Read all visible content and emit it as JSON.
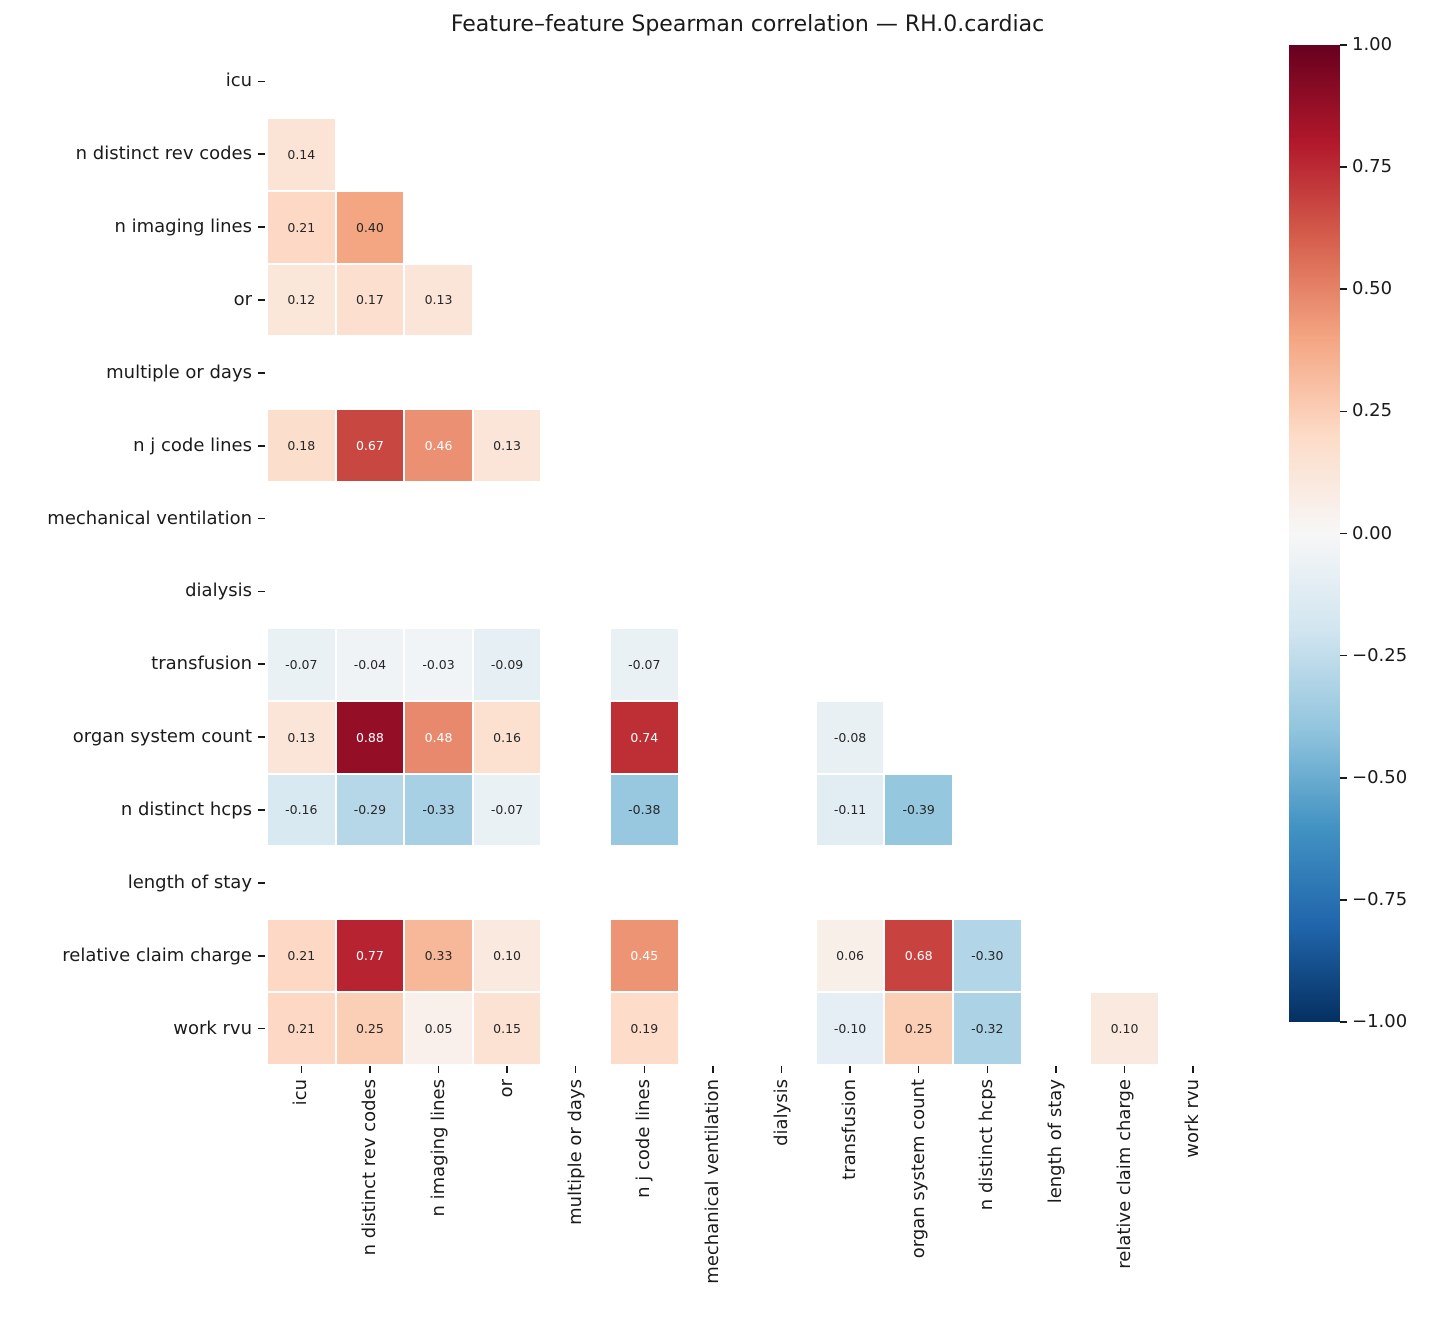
{
  "chart_data": {
    "type": "heatmap",
    "title": "Feature–feature Spearman correlation — RH.0.cardiac",
    "labels": [
      "icu",
      "n distinct rev codes",
      "n imaging lines",
      "or",
      "multiple or days",
      "n j code lines",
      "mechanical ventilation",
      "dialysis",
      "transfusion",
      "organ system count",
      "n distinct hcps",
      "length of stay",
      "relative claim charge",
      "work rvu"
    ],
    "matrix": [
      [
        null,
        null,
        null,
        null,
        null,
        null,
        null,
        null,
        null,
        null,
        null,
        null,
        null,
        null
      ],
      [
        0.14,
        null,
        null,
        null,
        null,
        null,
        null,
        null,
        null,
        null,
        null,
        null,
        null,
        null
      ],
      [
        0.21,
        0.4,
        null,
        null,
        null,
        null,
        null,
        null,
        null,
        null,
        null,
        null,
        null,
        null
      ],
      [
        0.12,
        0.17,
        0.13,
        null,
        null,
        null,
        null,
        null,
        null,
        null,
        null,
        null,
        null,
        null
      ],
      [
        null,
        null,
        null,
        null,
        null,
        null,
        null,
        null,
        null,
        null,
        null,
        null,
        null,
        null
      ],
      [
        0.18,
        0.67,
        0.46,
        0.13,
        null,
        null,
        null,
        null,
        null,
        null,
        null,
        null,
        null,
        null
      ],
      [
        null,
        null,
        null,
        null,
        null,
        null,
        null,
        null,
        null,
        null,
        null,
        null,
        null,
        null
      ],
      [
        null,
        null,
        null,
        null,
        null,
        null,
        null,
        null,
        null,
        null,
        null,
        null,
        null,
        null
      ],
      [
        -0.07,
        -0.04,
        -0.03,
        -0.09,
        null,
        -0.07,
        null,
        null,
        null,
        null,
        null,
        null,
        null,
        null
      ],
      [
        0.13,
        0.88,
        0.48,
        0.16,
        null,
        0.74,
        null,
        null,
        -0.08,
        null,
        null,
        null,
        null,
        null
      ],
      [
        -0.16,
        -0.29,
        -0.33,
        -0.07,
        null,
        -0.38,
        null,
        null,
        -0.11,
        -0.39,
        null,
        null,
        null,
        null
      ],
      [
        null,
        null,
        null,
        null,
        null,
        null,
        null,
        null,
        null,
        null,
        null,
        null,
        null,
        null
      ],
      [
        0.21,
        0.77,
        0.33,
        0.1,
        null,
        0.45,
        null,
        null,
        0.06,
        0.68,
        -0.3,
        null,
        null,
        null
      ],
      [
        0.21,
        0.25,
        0.05,
        0.15,
        null,
        0.19,
        null,
        null,
        -0.1,
        0.25,
        -0.32,
        null,
        0.1,
        null
      ]
    ],
    "mask": "lower triangle only (diagonal hidden); features multiple or days, mechanical ventilation, dialysis, length of stay have no cells",
    "vmin": -1,
    "vmax": 1,
    "colorscale": [
      "#053061",
      "#2166ac",
      "#4393c3",
      "#92c5de",
      "#d1e5f0",
      "#f7f7f7",
      "#fddbc7",
      "#f4a582",
      "#d6604d",
      "#b2182b",
      "#67001f"
    ],
    "annot_dark_text": "#262626",
    "annot_light_text": "#ffffff",
    "background": "#ffffff",
    "grid": "off",
    "legend_position": "right-colorbar",
    "colorbar_ticks": [
      {
        "value": 1.0,
        "label": "1.00"
      },
      {
        "value": 0.75,
        "label": "0.75"
      },
      {
        "value": 0.5,
        "label": "0.50"
      },
      {
        "value": 0.25,
        "label": "0.25"
      },
      {
        "value": 0.0,
        "label": "0.00"
      },
      {
        "value": -0.25,
        "label": "−0.25"
      },
      {
        "value": -0.5,
        "label": "−0.50"
      },
      {
        "value": -0.75,
        "label": "−0.75"
      },
      {
        "value": -1.0,
        "label": "−1.00"
      }
    ]
  }
}
